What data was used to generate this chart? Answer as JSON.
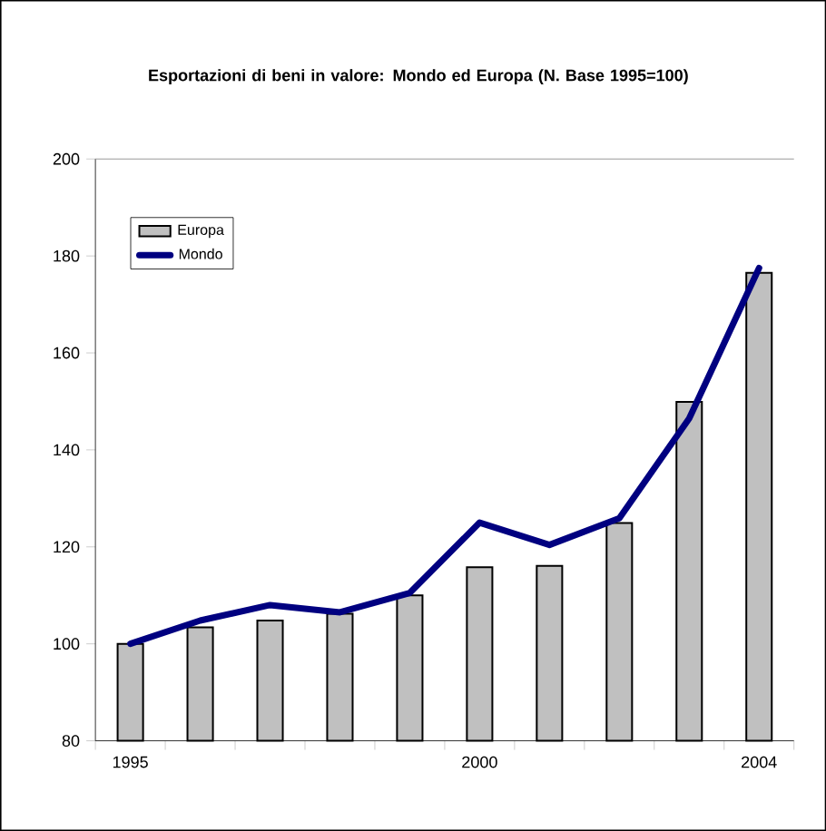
{
  "chart_data": {
    "type": "bar",
    "title": "Esportazioni di beni in valore: Mondo ed Europa (N. Base 1995=100)",
    "categories": [
      "1995",
      null,
      null,
      null,
      null,
      "2000",
      null,
      null,
      null,
      "2004"
    ],
    "series": [
      {
        "name": "Europa",
        "color": "#c0c0c0",
        "values": [
          100,
          103.4,
          104.8,
          106.2,
          110,
          115.8,
          116.1,
          124.9,
          149.9,
          176.5
        ]
      },
      {
        "name": "Mondo",
        "type": "line",
        "color": "#000080",
        "values": [
          100,
          104.8,
          108,
          106.5,
          110.5,
          125,
          120.4,
          125.9,
          146.5,
          177.5
        ]
      }
    ],
    "ylim": [
      80,
      200
    ],
    "yticks": [
      80,
      100,
      120,
      140,
      160,
      180,
      200
    ],
    "legend": "top left",
    "grid": false
  }
}
